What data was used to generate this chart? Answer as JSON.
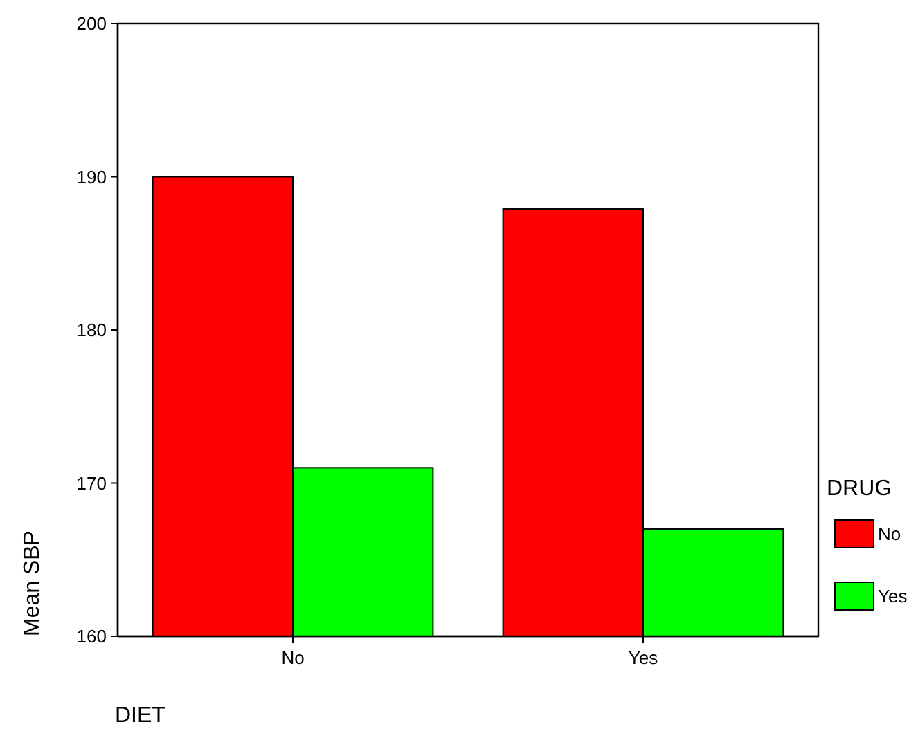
{
  "chart_data": {
    "type": "bar",
    "xlabel": "DIET",
    "ylabel": "Mean SBP",
    "legend_title": "DRUG",
    "categories": [
      "No",
      "Yes"
    ],
    "series": [
      {
        "name": "No",
        "color": "#ff0000",
        "values": [
          190,
          187.9
        ]
      },
      {
        "name": "Yes",
        "color": "#00ff00",
        "values": [
          171,
          167
        ]
      }
    ],
    "ylim": [
      160,
      200
    ],
    "yticks": [
      160,
      170,
      180,
      190,
      200
    ],
    "grid": false,
    "legend": "right"
  }
}
